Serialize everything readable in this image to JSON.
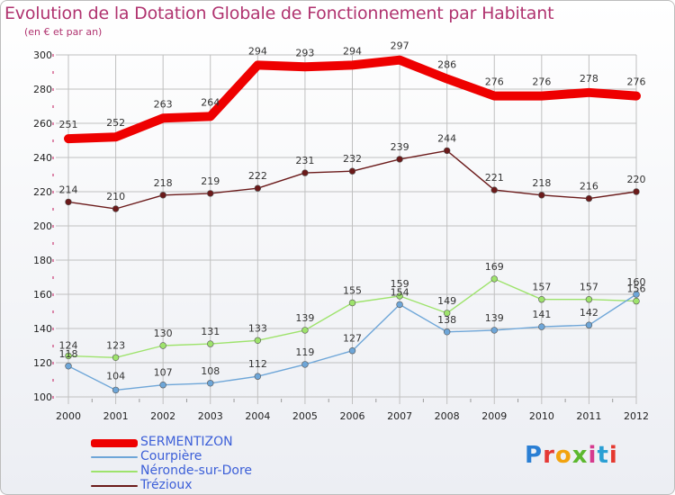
{
  "title": "Evolution de la Dotation Globale de Fonctionnement par Habitant",
  "subtitle": "(en € et par an)",
  "logo": [
    "P",
    "r",
    "o",
    "x",
    "i",
    "t",
    "i"
  ],
  "colors": {
    "title": "#b0336f",
    "grid": "#c0c0c0",
    "axis_ticks": "#c2185b",
    "legend_text": "#3c5fd8",
    "logo": [
      "#2a7fd4",
      "#e53935",
      "#f2a30f",
      "#5cb82e",
      "#d63a8e",
      "#2a9fd4",
      "#e5392f"
    ]
  },
  "chart_data": {
    "type": "line",
    "title": "Evolution de la Dotation Globale de Fonctionnement par Habitant",
    "subtitle": "(en € et par an)",
    "xlabel": "",
    "ylabel": "",
    "ylim": [
      100,
      300
    ],
    "yticks": [
      100,
      120,
      140,
      160,
      180,
      200,
      220,
      240,
      260,
      280,
      300
    ],
    "grid": true,
    "legend_position": "bottom-left",
    "categories": [
      "2000",
      "2001",
      "2002",
      "2003",
      "2004",
      "2005",
      "2006",
      "2007",
      "2008",
      "2009",
      "2010",
      "2011",
      "2012"
    ],
    "series": [
      {
        "name": "Trézioux",
        "color": "#6b1a1a",
        "values": [
          214,
          210,
          218,
          219,
          222,
          231,
          232,
          239,
          244,
          221,
          218,
          216,
          220
        ]
      },
      {
        "name": "Néronde-sur-Dore",
        "color": "#9ee36c",
        "values": [
          124,
          123,
          130,
          131,
          133,
          139,
          155,
          159,
          149,
          169,
          157,
          157,
          156
        ]
      },
      {
        "name": "Courpière",
        "color": "#6ea6d8",
        "values": [
          118,
          104,
          107,
          108,
          112,
          119,
          127,
          154,
          138,
          139,
          141,
          142,
          160
        ]
      },
      {
        "name": "SERMENTIZON",
        "color": "#ee0000",
        "values": [
          251,
          252,
          263,
          264,
          294,
          293,
          294,
          297,
          286,
          276,
          276,
          278,
          276
        ]
      }
    ],
    "legend_order": [
      "SERMENTIZON",
      "Courpière",
      "Néronde-sur-Dore",
      "Trézioux"
    ]
  }
}
